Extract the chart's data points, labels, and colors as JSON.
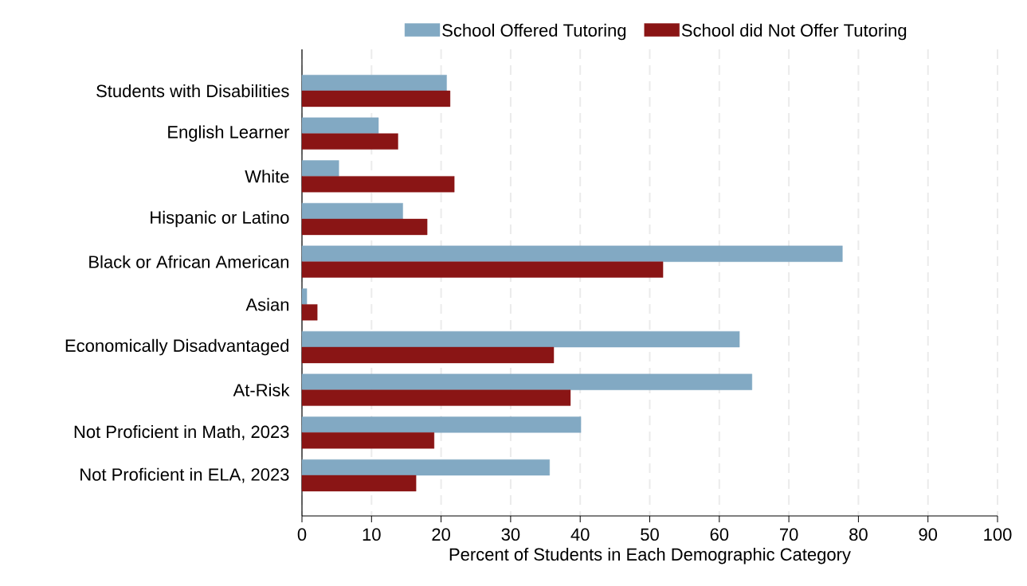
{
  "chart_data": {
    "type": "bar",
    "orientation": "horizontal",
    "categories": [
      "Students with Disabilities",
      "English Learner",
      "White",
      "Hispanic or Latino",
      "Black or African American",
      "Asian",
      "Economically Disadvantaged",
      "At-Risk",
      "Not Proficient in Math, 2023",
      "Not Proficient in ELA, 2023"
    ],
    "series": [
      {
        "name": "School Offered Tutoring",
        "color": "#82a9c3",
        "values": [
          20.8,
          11.0,
          5.3,
          14.5,
          77.7,
          0.7,
          62.9,
          64.7,
          40.1,
          35.6
        ]
      },
      {
        "name": "School did Not Offer Tutoring",
        "color": "#8a1515",
        "values": [
          21.3,
          13.8,
          21.9,
          18.0,
          51.9,
          2.2,
          36.2,
          38.6,
          19.0,
          16.4
        ]
      }
    ],
    "xlim": [
      0,
      100
    ],
    "xticks": [
      0,
      10,
      20,
      30,
      40,
      50,
      60,
      70,
      80,
      90,
      100
    ],
    "xlabel": "Percent of Students in Each Demographic Category",
    "grid": "x",
    "legend": "top"
  }
}
